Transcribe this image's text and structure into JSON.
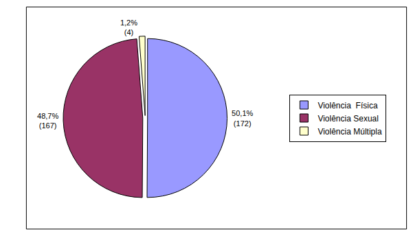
{
  "chart_data": {
    "type": "pie",
    "categories": [
      "Violência  Física",
      "Violência Sexual",
      "Violência Múltipla"
    ],
    "values": [
      50.1,
      48.7,
      1.2
    ],
    "value_labels": [
      "50,1%",
      "48,7%",
      "1,2%"
    ],
    "counts": [
      172,
      167,
      4
    ],
    "count_labels": [
      "(172)",
      "(167)",
      "(4)"
    ],
    "colors": [
      "#9999ff",
      "#993366",
      "#ffffcc"
    ],
    "data_labels": true,
    "legend": "right"
  }
}
